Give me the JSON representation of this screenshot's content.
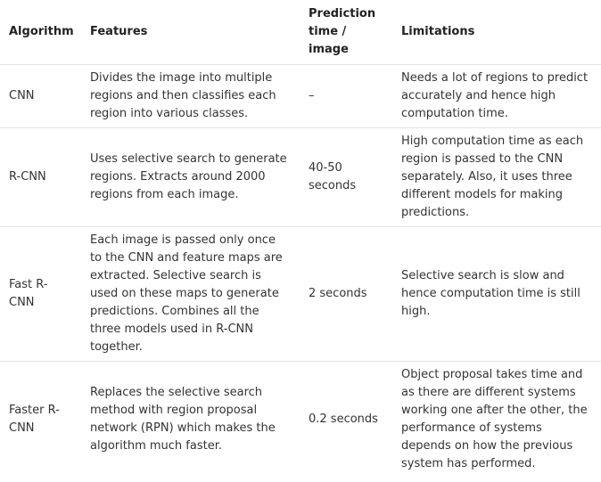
{
  "table": {
    "headers": [
      "Algorithm",
      "Features",
      "Prediction time / image",
      "Limitations"
    ],
    "rows": [
      {
        "algorithm": "CNN",
        "features": "Divides the image into multiple regions and then classifies each region into various classes.",
        "prediction_time": "–",
        "limitations": "Needs a lot of regions to predict accurately and hence high computation time."
      },
      {
        "algorithm": "R-CNN",
        "features": "Uses selective search to generate regions. Extracts around 2000 regions from each image.",
        "prediction_time": "40-50 seconds",
        "limitations": "High computation time as each region is passed to the CNN separately. Also, it uses three different models for making predictions."
      },
      {
        "algorithm": "Fast R-CNN",
        "features": "Each image is passed only once to the CNN and feature maps are extracted. Selective search is used on these maps to generate predictions. Combines all the three models used in R-CNN together.",
        "prediction_time": "2 seconds",
        "limitations": "Selective search is slow and hence computation time is still high."
      },
      {
        "algorithm": "Faster R-CNN",
        "features": "Replaces the selective search method with region proposal network (RPN) which makes the algorithm much faster.",
        "prediction_time": "0.2 seconds",
        "limitations": "Object proposal takes time and as there are different systems working one after the other, the performance of systems depends on how the previous system has performed."
      }
    ]
  }
}
